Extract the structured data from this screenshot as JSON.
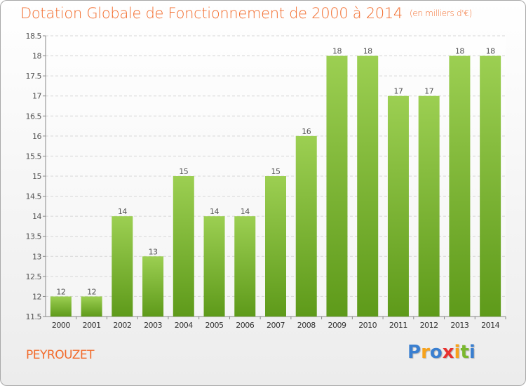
{
  "chart_data": {
    "type": "bar",
    "title": "Dotation Globale de Fonctionnement de 2000 à 2014",
    "subtitle": "(en milliers d'€)",
    "categories": [
      "2000",
      "2001",
      "2002",
      "2003",
      "2004",
      "2005",
      "2006",
      "2007",
      "2008",
      "2009",
      "2010",
      "2011",
      "2012",
      "2013",
      "2014"
    ],
    "values": [
      12,
      12,
      14,
      13,
      15,
      14,
      14,
      15,
      16,
      18,
      18,
      17,
      17,
      18,
      18
    ],
    "ylim": [
      11.5,
      18.5
    ],
    "yticks": [
      "11.5",
      "12",
      "12.5",
      "13",
      "13.5",
      "14",
      "14.5",
      "15",
      "15.5",
      "16",
      "16.5",
      "17",
      "17.5",
      "18",
      "18.5"
    ],
    "grid": true,
    "bar_color": "#7ab82e",
    "xlabel": "",
    "ylabel": ""
  },
  "footer": {
    "commune": "PEYROUZET",
    "logo_letters": [
      "P",
      "r",
      "o",
      "x",
      "i",
      "t",
      "i"
    ],
    "logo_colors": [
      "#3a7fd0",
      "#f7a21b",
      "#3a7fd0",
      "#e8312f",
      "#f7a21b",
      "#7ab82e",
      "#3a7fd0"
    ]
  }
}
